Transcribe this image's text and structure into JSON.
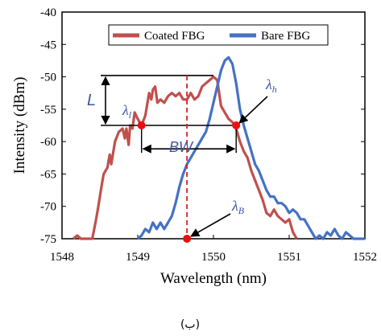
{
  "chart_data": {
    "type": "line",
    "xlabel": "Wavelength (nm)",
    "ylabel": "Intensity (dBm)",
    "xlim": [
      1548,
      1552
    ],
    "ylim": [
      -75,
      -40
    ],
    "xticks": [
      "1548",
      "1549",
      "1550",
      "1551",
      "1552"
    ],
    "yticks": [
      "-40",
      "-45",
      "-50",
      "-55",
      "-60",
      "-65",
      "-70",
      "-75"
    ],
    "grid": false,
    "legend_placement": "top",
    "series": [
      {
        "name": "Coated FBG",
        "color": "#c0504d",
        "x": [
          1548.15,
          1548.2,
          1548.25,
          1548.3,
          1548.38,
          1548.4,
          1548.45,
          1548.48,
          1548.52,
          1548.55,
          1548.6,
          1548.63,
          1548.65,
          1548.7,
          1548.75,
          1548.8,
          1548.83,
          1548.85,
          1548.88,
          1548.9,
          1548.93,
          1548.96,
          1549.0,
          1549.05,
          1549.1,
          1549.15,
          1549.18,
          1549.2,
          1549.23,
          1549.26,
          1549.3,
          1549.35,
          1549.4,
          1549.45,
          1549.5,
          1549.55,
          1549.6,
          1549.65,
          1549.7,
          1549.75,
          1549.8,
          1549.85,
          1549.9,
          1549.95,
          1550.0,
          1550.05,
          1550.1,
          1550.15,
          1550.2,
          1550.25,
          1550.3,
          1550.35,
          1550.4,
          1550.45,
          1550.5,
          1550.55,
          1550.6,
          1550.65,
          1550.7,
          1550.75,
          1550.8,
          1550.85,
          1550.9,
          1550.95,
          1551.0,
          1551.05,
          1551.1
        ],
        "y": [
          -75,
          -74.5,
          -75,
          -75,
          -75,
          -75,
          -72,
          -70,
          -67,
          -65,
          -64,
          -62,
          -63.5,
          -60,
          -58.5,
          -58,
          -59.5,
          -58,
          -60.5,
          -57.5,
          -58,
          -55.5,
          -56.5,
          -57.5,
          -56,
          -52.5,
          -53.5,
          -52,
          -51.5,
          -54,
          -53.5,
          -54,
          -53,
          -52.5,
          -53,
          -52.5,
          -53.5,
          -53.5,
          -52.5,
          -53.5,
          -53,
          -51.5,
          -51,
          -50.5,
          -50,
          -50.5,
          -54.5,
          -55.5,
          -56.5,
          -57,
          -58,
          -60,
          -61.5,
          -62.5,
          -64.5,
          -66,
          -67.5,
          -69,
          -71,
          -71.5,
          -70.5,
          -71.5,
          -72,
          -72.5,
          -72,
          -74,
          -75
        ]
      },
      {
        "name": "Bare FBG",
        "color": "#4472c4",
        "x": [
          1549.0,
          1549.05,
          1549.1,
          1549.15,
          1549.2,
          1549.25,
          1549.3,
          1549.35,
          1549.4,
          1549.45,
          1549.5,
          1549.55,
          1549.6,
          1549.65,
          1549.7,
          1549.75,
          1549.8,
          1549.85,
          1549.9,
          1549.95,
          1550.0,
          1550.05,
          1550.1,
          1550.15,
          1550.2,
          1550.25,
          1550.3,
          1550.35,
          1550.4,
          1550.45,
          1550.5,
          1550.55,
          1550.6,
          1550.65,
          1550.7,
          1550.75,
          1550.8,
          1550.85,
          1550.9,
          1550.95,
          1551.0,
          1551.05,
          1551.1,
          1551.15,
          1551.2,
          1551.25,
          1551.3,
          1551.35,
          1551.4,
          1551.45,
          1551.5,
          1551.55,
          1551.6,
          1551.65,
          1551.7,
          1551.75,
          1551.8,
          1551.85,
          1551.9,
          1552.0
        ],
        "y": [
          -75,
          -74.5,
          -73.5,
          -74,
          -72.5,
          -73.5,
          -72.5,
          -73.5,
          -72.5,
          -71.5,
          -69.5,
          -67,
          -65,
          -63.5,
          -62.5,
          -61.5,
          -60.5,
          -59.5,
          -58.5,
          -56.5,
          -54,
          -51.5,
          -49,
          -47.5,
          -47,
          -48,
          -51,
          -55,
          -57.5,
          -59.5,
          -61.5,
          -63.5,
          -64.5,
          -66,
          -67.5,
          -68.5,
          -68.5,
          -69.5,
          -69.5,
          -70,
          -71,
          -70.5,
          -71,
          -72,
          -72,
          -73,
          -74,
          -75,
          -74.5,
          -75,
          -74,
          -74.5,
          -73.5,
          -74.5,
          -75,
          -74,
          -74.5,
          -75,
          -75,
          -75
        ]
      }
    ],
    "annotations": {
      "L": "L",
      "BW": "BW",
      "lambda_l_sym": "λ",
      "lambda_l_sub": "l",
      "lambda_h_sym": "λ",
      "lambda_h_sub": "h",
      "lambda_B_sym": "λ",
      "lambda_B_sub": "B",
      "lambda_l_point": [
        1549.05,
        -57.5
      ],
      "lambda_h_point": [
        1550.3,
        -57.5
      ],
      "lambda_B_point": [
        1549.65,
        -75
      ],
      "bw_level": -60.5,
      "l_top_level": -49.8,
      "l_bottom_level": -57.5
    }
  },
  "caption": "(ب)"
}
